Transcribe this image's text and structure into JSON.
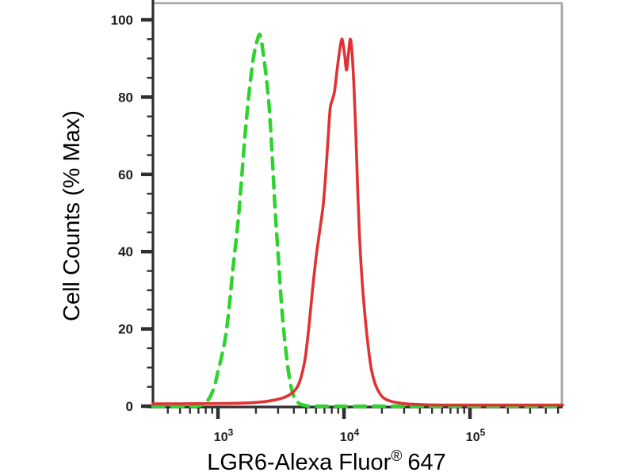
{
  "figure": {
    "background": "#ffffff",
    "frame_color": "#a8a8a8",
    "axis_color": "#2e2e2e",
    "y_axis": {
      "title": "Cell Counts (% Max)",
      "ticks": [
        {
          "value": 0,
          "label": "0"
        },
        {
          "value": 20,
          "label": "20"
        },
        {
          "value": 40,
          "label": "40"
        },
        {
          "value": 60,
          "label": "60"
        },
        {
          "value": 80,
          "label": "80"
        },
        {
          "value": 100,
          "label": "100"
        }
      ],
      "minor_step": 5
    },
    "x_axis": {
      "title_main": "LGR6-Alexa Fluor",
      "title_sup": "®",
      "title_suffix": "647",
      "decade_ticks": [
        {
          "log": 3,
          "base": "10",
          "exp": "3"
        },
        {
          "log": 4,
          "base": "10",
          "exp": "4"
        },
        {
          "log": 5,
          "base": "10",
          "exp": "5"
        }
      ]
    }
  },
  "chart_data": {
    "type": "line",
    "subtype": "flow-cytometry-overlay-histogram",
    "title": "",
    "xlabel": "LGR6-Alexa Fluor® 647",
    "ylabel": "Cell Counts (% Max)",
    "x_scale": "log10",
    "x_range_log10": [
      2.484,
      5.735
    ],
    "ylim": [
      0,
      100
    ],
    "grid": false,
    "legend": "none",
    "series": [
      {
        "name": "green-dashed-histogram",
        "line_style": "dashed",
        "color": "#2fd32f",
        "peak_x_log10": 3.335,
        "peak_percent": 96,
        "points": [
          [
            2.484,
            0
          ],
          [
            2.8,
            0
          ],
          [
            2.88,
            0.5
          ],
          [
            2.93,
            2
          ],
          [
            2.97,
            5
          ],
          [
            3.0,
            9
          ],
          [
            3.03,
            13
          ],
          [
            3.06,
            18
          ],
          [
            3.09,
            26
          ],
          [
            3.12,
            36
          ],
          [
            3.16,
            48
          ],
          [
            3.19,
            60
          ],
          [
            3.22,
            72
          ],
          [
            3.25,
            82
          ],
          [
            3.28,
            90
          ],
          [
            3.31,
            94.5
          ],
          [
            3.335,
            96
          ],
          [
            3.365,
            90
          ],
          [
            3.39,
            83
          ],
          [
            3.41,
            76
          ],
          [
            3.435,
            62
          ],
          [
            3.455,
            50
          ],
          [
            3.48,
            38
          ],
          [
            3.505,
            26
          ],
          [
            3.53,
            17
          ],
          [
            3.555,
            10
          ],
          [
            3.58,
            5
          ],
          [
            3.61,
            2
          ],
          [
            3.645,
            0.7
          ],
          [
            3.69,
            0.2
          ],
          [
            3.8,
            0
          ],
          [
            4.5,
            0
          ],
          [
            5.735,
            0
          ]
        ]
      },
      {
        "name": "red-solid-histogram",
        "line_style": "solid",
        "color": "#e03232",
        "peak_x_log10": 3.985,
        "peak_percent": 95,
        "points": [
          [
            2.484,
            0.6
          ],
          [
            3.0,
            0.7
          ],
          [
            3.2,
            0.8
          ],
          [
            3.35,
            1.1
          ],
          [
            3.45,
            1.6
          ],
          [
            3.52,
            2.2
          ],
          [
            3.57,
            3
          ],
          [
            3.62,
            4.5
          ],
          [
            3.655,
            7
          ],
          [
            3.69,
            12
          ],
          [
            3.72,
            20
          ],
          [
            3.75,
            30
          ],
          [
            3.78,
            39
          ],
          [
            3.81,
            46
          ],
          [
            3.835,
            52
          ],
          [
            3.855,
            60
          ],
          [
            3.875,
            70
          ],
          [
            3.89,
            77
          ],
          [
            3.905,
            79
          ],
          [
            3.925,
            81.5
          ],
          [
            3.945,
            87
          ],
          [
            3.965,
            92
          ],
          [
            3.985,
            95
          ],
          [
            4.005,
            91
          ],
          [
            4.02,
            87
          ],
          [
            4.035,
            91
          ],
          [
            4.05,
            95
          ],
          [
            4.065,
            91
          ],
          [
            4.08,
            82
          ],
          [
            4.095,
            70
          ],
          [
            4.11,
            55
          ],
          [
            4.125,
            43
          ],
          [
            4.145,
            32
          ],
          [
            4.165,
            24
          ],
          [
            4.19,
            16
          ],
          [
            4.215,
            10
          ],
          [
            4.245,
            6
          ],
          [
            4.28,
            3.5
          ],
          [
            4.32,
            2
          ],
          [
            4.38,
            1.2
          ],
          [
            4.45,
            0.8
          ],
          [
            4.55,
            0.5
          ],
          [
            4.8,
            0.3
          ],
          [
            5.735,
            0.3
          ]
        ]
      }
    ]
  }
}
